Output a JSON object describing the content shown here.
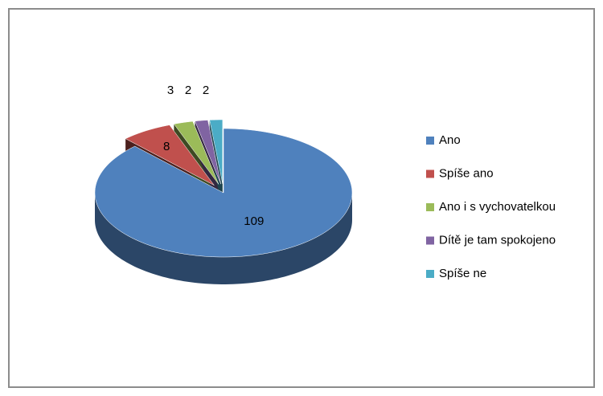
{
  "chart_data": {
    "type": "pie3d",
    "categories": [
      "Ano",
      "Spíše ano",
      "Ano i s vychovatelkou",
      "Dítě je tam spokojeno",
      "Spíše ne"
    ],
    "values": [
      109,
      8,
      3,
      2,
      2
    ],
    "colors": [
      "#4f81bd",
      "#c0504d",
      "#9bbb59",
      "#8064a2",
      "#4bacc6"
    ],
    "legend": "right"
  }
}
